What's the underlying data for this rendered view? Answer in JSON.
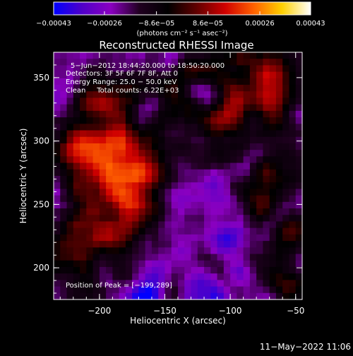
{
  "chart_data": {
    "type": "heatmap",
    "title": "Reconstructed RHESSI Image",
    "xlabel": "Heliocentric X (arcsec)",
    "ylabel": "Heliocentric Y (arcsec)",
    "xlim": [
      -235,
      -45
    ],
    "ylim": [
      175,
      370
    ],
    "x_ticks": [
      -200,
      -150,
      -100,
      -50
    ],
    "x_tick_labels": [
      "−200",
      "−150",
      "−100",
      "−50"
    ],
    "y_ticks": [
      200,
      250,
      300,
      350
    ],
    "y_tick_labels": [
      "200",
      "250",
      "300",
      "350"
    ],
    "colorbar": {
      "range": [
        -0.00043,
        0.00043
      ],
      "ticks": [
        -0.00043,
        -0.00026,
        -8.6e-05,
        8.6e-05,
        0.00026,
        0.00043
      ],
      "tick_labels": [
        "−0.00043",
        "−0.00026",
        "−8.6e−05",
        "8.6e−05",
        "0.00026",
        "0.00043"
      ],
      "unit_label": "(photons cm⁻² s⁻¹ asec⁻²)",
      "colors": [
        "#0000ff",
        "#5000c8",
        "#8a00c0",
        "#200020",
        "#000000",
        "#600000",
        "#d00000",
        "#ff6000",
        "#ffd000",
        "#ffffff"
      ]
    },
    "annotations": [
      "5−Jun−2012 18:44:20.000 to 18:50:20.000",
      "Detectors: 3F 5F 6F 7F 8F, Att 0",
      "Energy Range: 25.0 − 50.0 keV",
      "Clean     Total counts: 6.22E+03"
    ],
    "peak_label": "Position of Peak = [−199,289]",
    "peak": [
      -199,
      289
    ],
    "nx": 38,
    "ny": 38,
    "seed": 7
  },
  "footer": {
    "timestamp": "11−May−2022 11:06"
  }
}
